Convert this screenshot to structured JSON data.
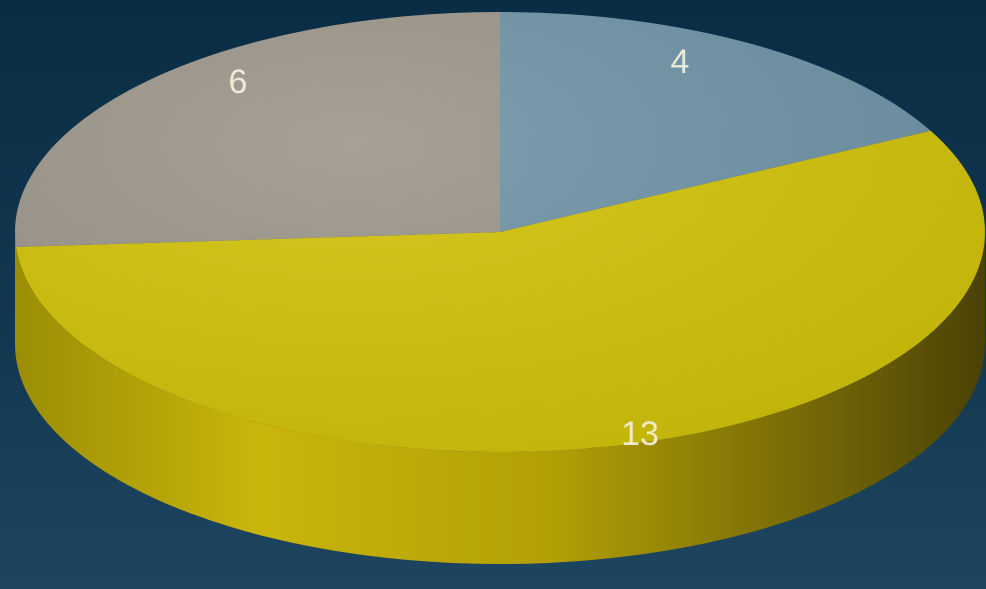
{
  "chart_data": {
    "type": "pie",
    "style": "3d",
    "title": "",
    "slices": [
      {
        "value": 4,
        "label": "4",
        "color": "#6f94a7"
      },
      {
        "value": 13,
        "label": "13",
        "color": "#d3c30a"
      },
      {
        "value": 6,
        "label": "6",
        "color": "#9c968a"
      }
    ],
    "legend": "none",
    "background_color": "#0d3048"
  }
}
